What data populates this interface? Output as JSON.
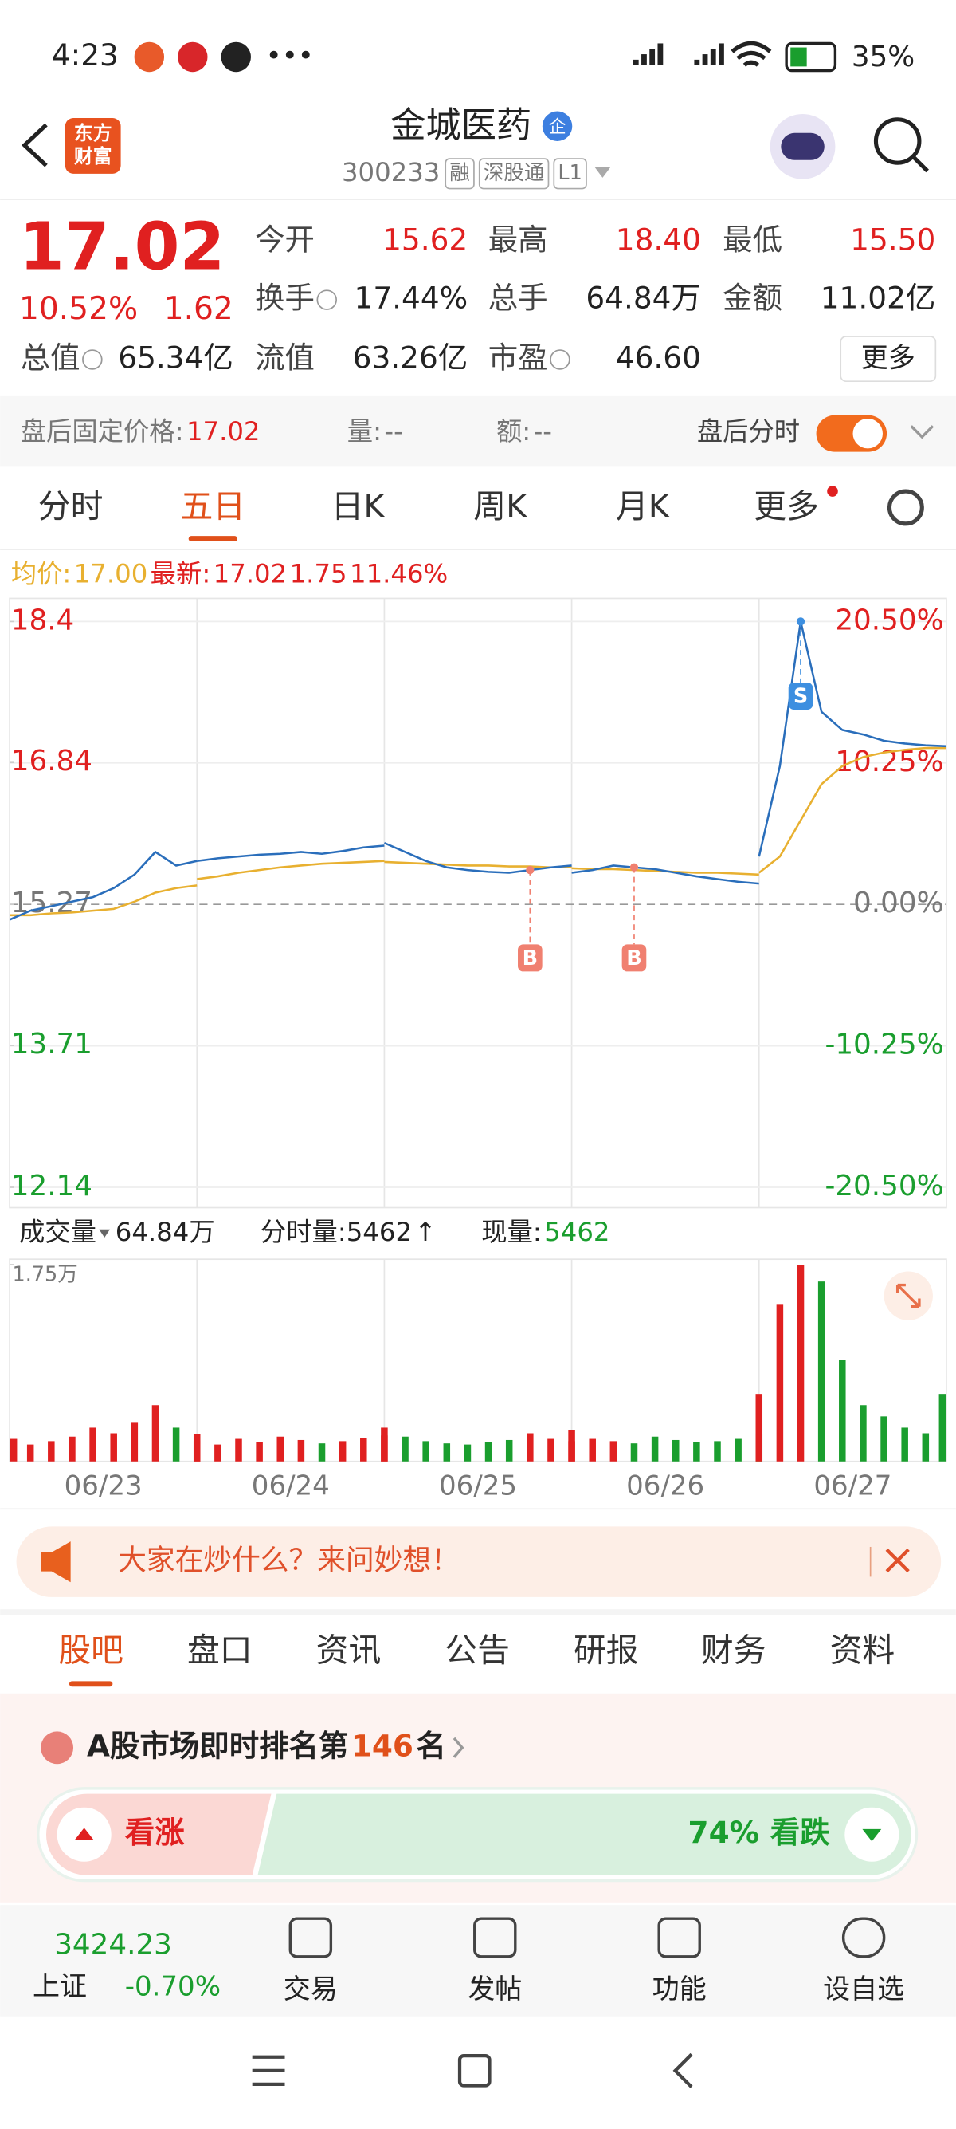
{
  "status_bar": {
    "time": "4:23",
    "battery": "35%"
  },
  "header": {
    "logo": [
      "东方",
      "财富"
    ],
    "title": "金城医药",
    "badge": "企",
    "code": "300233",
    "tags": [
      "融",
      "深股通",
      "L1"
    ]
  },
  "quote": {
    "price": "17.02",
    "change_pct": "10.52%",
    "change": "1.62",
    "fields": [
      {
        "label": "今开",
        "value": "15.62"
      },
      {
        "label": "最高",
        "value": "18.40"
      },
      {
        "label": "最低",
        "value": "15.50"
      },
      {
        "label": "换手",
        "value": "17.44%"
      },
      {
        "label": "总手",
        "value": "64.84万"
      },
      {
        "label": "金额",
        "value": "11.02亿"
      },
      {
        "label": "总值",
        "value": "65.34亿"
      },
      {
        "label": "流值",
        "value": "63.26亿"
      },
      {
        "label": "市盈",
        "value": "46.60"
      }
    ],
    "more": "更多"
  },
  "after_hours": {
    "price_label": "盘后固定价格:",
    "price": "17.02",
    "volume_label": "量:",
    "volume": "--",
    "amount_label": "额:",
    "amount": "--",
    "toggle": "盘后分时"
  },
  "tabs": {
    "items": [
      "分时",
      "五日",
      "日K",
      "周K",
      "月K",
      "更多"
    ],
    "active": 1
  },
  "legend": {
    "avg_label": "均价:",
    "avg": "17.00",
    "last_label": "最新:",
    "last": "17.02",
    "change": "1.75",
    "change_pct": "11.46%"
  },
  "chart_data": {
    "type": "line",
    "categories": [
      "06/23",
      "06/24",
      "06/25",
      "06/26",
      "06/27"
    ],
    "ylim": [
      12.14,
      18.4
    ],
    "yticks": [
      18.4,
      16.84,
      15.27,
      13.71,
      12.14
    ],
    "y2lim": [
      -20.5,
      20.5
    ],
    "y2ticks": [
      {
        "value": 20.5,
        "label": "20.50%"
      },
      {
        "value": 10.25,
        "label": "10.25%"
      },
      {
        "value": 0,
        "label": "0.00%"
      },
      {
        "value": -10.25,
        "label": "-10.25%"
      },
      {
        "value": -20.5,
        "label": "-20.50%"
      }
    ],
    "up_color": "#e02020",
    "down_color": "#1a9e2e",
    "series": [
      {
        "color": "#2a6ebb",
        "values": [
          [
            15.1,
            15.2,
            15.25,
            15.3,
            15.35,
            15.45,
            15.6,
            15.85,
            15.7,
            15.75
          ],
          [
            15.75,
            15.78,
            15.8,
            15.82,
            15.83,
            15.85,
            15.83,
            15.86,
            15.9,
            15.92
          ],
          [
            15.95,
            15.85,
            15.75,
            15.68,
            15.65,
            15.63,
            15.62,
            15.65,
            15.68,
            15.7
          ],
          [
            15.62,
            15.65,
            15.7,
            15.68,
            15.66,
            15.62,
            15.58,
            15.55,
            15.52,
            15.5
          ],
          [
            15.8,
            16.8,
            18.4,
            17.4,
            17.2,
            17.15,
            17.08,
            17.05,
            17.03,
            17.02
          ]
        ]
      },
      {
        "color": "#e8b030",
        "values": [
          [
            15.15,
            15.15,
            15.17,
            15.18,
            15.2,
            15.22,
            15.3,
            15.4,
            15.45,
            15.48
          ],
          [
            15.55,
            15.58,
            15.62,
            15.65,
            15.68,
            15.7,
            15.72,
            15.73,
            15.74,
            15.75
          ],
          [
            15.74,
            15.73,
            15.72,
            15.71,
            15.7,
            15.7,
            15.69,
            15.69,
            15.68,
            15.68
          ],
          [
            15.67,
            15.66,
            15.66,
            15.65,
            15.64,
            15.63,
            15.62,
            15.62,
            15.61,
            15.6
          ],
          [
            15.62,
            15.8,
            16.2,
            16.6,
            16.8,
            16.9,
            16.95,
            16.98,
            17.0,
            17.0
          ]
        ]
      }
    ],
    "markers": [
      {
        "label": "B",
        "day": 2,
        "point": 7
      },
      {
        "label": "B",
        "day": 3,
        "point": 3
      },
      {
        "label": "S",
        "day": 4,
        "point": 2
      }
    ],
    "volume": {
      "title": "成交量",
      "total": "64.84万",
      "tick_label": "分时量:5462",
      "tick_arrow": "↑",
      "now_label": "现量:",
      "now": "5462",
      "ylim": [
        0,
        17500
      ],
      "yticks": [
        {
          "value": 17500,
          "label": "1.75万"
        }
      ],
      "values": [
        [
          2000,
          1500,
          1800,
          2200,
          3000,
          2500,
          3500,
          5000,
          3000,
          2400
        ],
        [
          1800,
          1500,
          2000,
          1700,
          2200,
          1900,
          1600,
          1800,
          2100,
          2300
        ],
        [
          3000,
          2200,
          1800,
          1600,
          1500,
          1700,
          1900,
          2500,
          2000,
          1800
        ],
        [
          2800,
          2000,
          1800,
          1600,
          2200,
          1900,
          1700,
          1800,
          2000,
          2400
        ],
        [
          6000,
          14000,
          17500,
          16000,
          9000,
          5000,
          4000,
          3000,
          2500,
          6000
        ]
      ]
    }
  },
  "banner": {
    "text": "大家在炒什么？来问妙想！"
  },
  "sub_tabs": {
    "items": [
      "股吧",
      "盘口",
      "资讯",
      "公告",
      "研报",
      "财务",
      "资料"
    ],
    "active": 0
  },
  "ranking": {
    "prefix": "A股市场即时排名第",
    "rank": "146",
    "suffix": "名"
  },
  "vote": {
    "bull": "看涨",
    "bear_pct": "74%",
    "bear": "看跌"
  },
  "bottom_nav": {
    "index_value": "3424.23",
    "index_name": "上证",
    "index_change": "-0.70%",
    "items": [
      "交易",
      "发帖",
      "功能",
      "设自选"
    ]
  }
}
